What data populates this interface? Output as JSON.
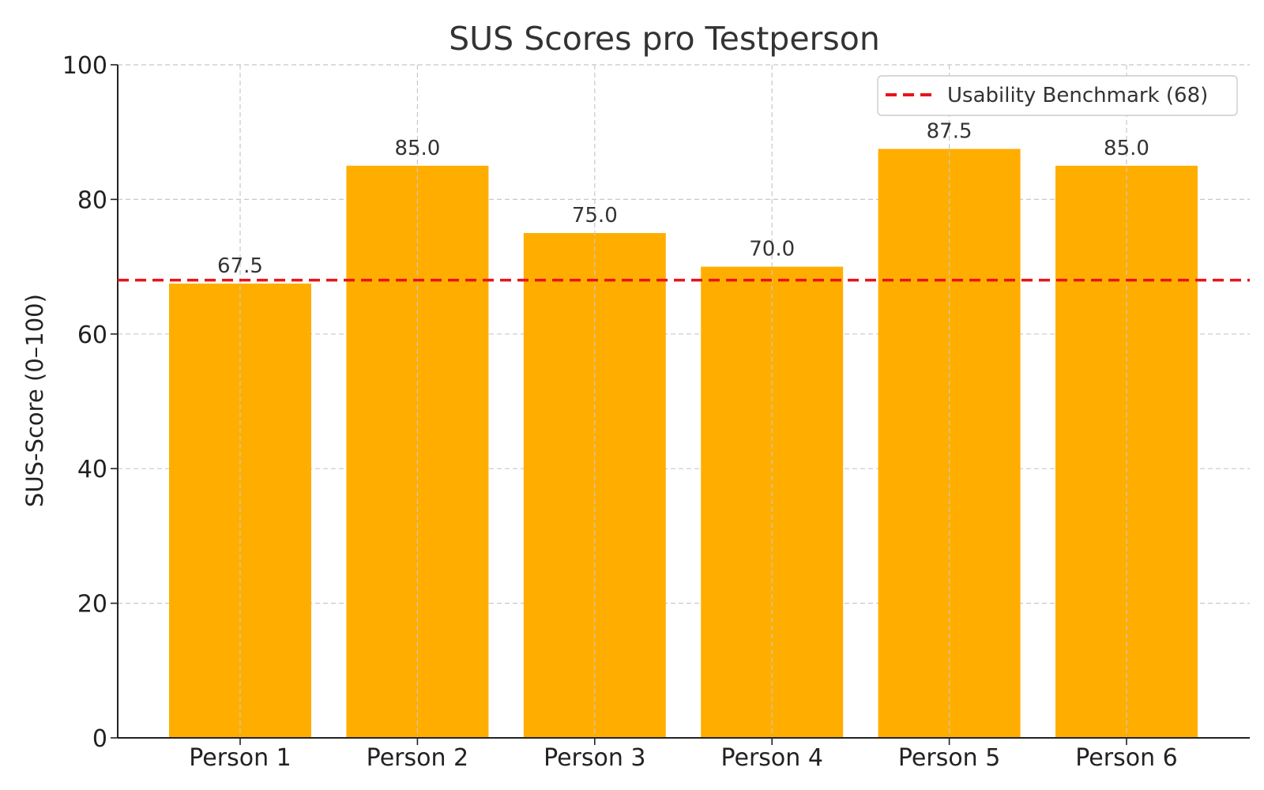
{
  "chart_data": {
    "type": "bar",
    "title": "SUS Scores pro Testperson",
    "xlabel": "",
    "ylabel": "SUS-Score (0–100)",
    "categories": [
      "Person 1",
      "Person 2",
      "Person 3",
      "Person 4",
      "Person 5",
      "Person 6"
    ],
    "values": [
      67.5,
      85.0,
      75.0,
      70.0,
      87.5,
      85.0
    ],
    "data_labels": [
      "67.5",
      "85.0",
      "75.0",
      "70.0",
      "87.5",
      "85.0"
    ],
    "ylim": [
      0,
      100
    ],
    "yticks": [
      0,
      20,
      40,
      60,
      80,
      100
    ],
    "grid": true,
    "bar_color": "#FFAE00",
    "reference_line": {
      "value": 68,
      "label": "Usability Benchmark (68)",
      "color": "#E8131B",
      "style": "dashed"
    },
    "legend": {
      "placement": "top-right",
      "entries": [
        "Usability Benchmark (68)"
      ]
    }
  }
}
